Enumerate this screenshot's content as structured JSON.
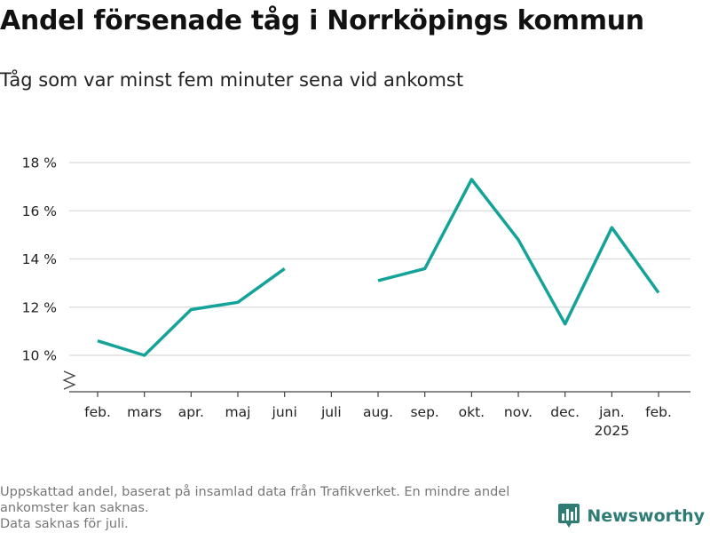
{
  "header": {
    "title": "Andel försenade tåg i Norrköpings kommun",
    "subtitle": "Tåg som var minst fem minuter sena vid ankomst"
  },
  "footer": {
    "note_line1": "Uppskattad andel, baserat på insamlad data från Trafikverket. En mindre andel",
    "note_line2": "ankomster kan saknas.",
    "note_line3": "Data saknas för juli."
  },
  "brand": {
    "name": "Newsworthy",
    "icon": "bar-chart-icon",
    "color": "#2f7c74"
  },
  "chart_data": {
    "type": "line",
    "title": "Andel försenade tåg i Norrköpings kommun",
    "subtitle": "Tåg som var minst fem minuter sena vid ankomst",
    "categories": [
      "feb.",
      "mars",
      "apr.",
      "maj",
      "juni",
      "juli",
      "aug.",
      "sep.",
      "okt.",
      "nov.",
      "dec.",
      "jan.",
      "feb."
    ],
    "year_label": {
      "category_index": 11,
      "text": "2025"
    },
    "series": [
      {
        "values": [
          10.6,
          10.0,
          11.9,
          12.2,
          13.6,
          null,
          13.1,
          13.6,
          17.3,
          14.8,
          11.3,
          15.3,
          12.6
        ],
        "color": "#14a398"
      }
    ],
    "yticks": [
      10,
      12,
      14,
      16,
      18
    ],
    "ytick_labels": [
      "10 %",
      "12 %",
      "14 %",
      "16 %",
      "18 %"
    ],
    "ylim": [
      8.5,
      18
    ],
    "axis_break": true,
    "grid": true,
    "xlabel": "",
    "ylabel": ""
  }
}
